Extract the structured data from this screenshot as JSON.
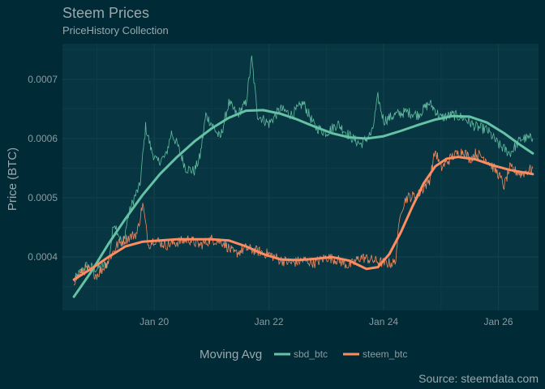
{
  "chart_data": {
    "type": "line",
    "title": "Steem Prices",
    "subtitle": "PriceHistory Collection",
    "ylabel": "Price (BTC)",
    "xlabel": "",
    "caption": "Source: steemdata.com",
    "legend_title": "Moving Avg",
    "legend_position": "bottom",
    "grid": true,
    "xlim_days": [
      18.4,
      26.7
    ],
    "ylim": [
      0.00031,
      0.00076
    ],
    "x_ticks": [
      {
        "day": 20,
        "label": "Jan 20"
      },
      {
        "day": 22,
        "label": "Jan 22"
      },
      {
        "day": 24,
        "label": "Jan 24"
      },
      {
        "day": 26,
        "label": "Jan 26"
      }
    ],
    "y_ticks": [
      {
        "value": 0.0004,
        "label": "0.0004"
      },
      {
        "value": 0.0005,
        "label": "0.0005"
      },
      {
        "value": 0.0006,
        "label": "0.0006"
      },
      {
        "value": 0.0007,
        "label": "0.0007"
      }
    ],
    "series": [
      {
        "name": "sbd_btc",
        "color": "#66c2a5",
        "raw": [
          [
            18.6,
            0.00036
          ],
          [
            18.8,
            0.000385
          ],
          [
            19.0,
            0.00038
          ],
          [
            19.2,
            0.00039
          ],
          [
            19.3,
            0.00046
          ],
          [
            19.45,
            0.00042
          ],
          [
            19.55,
            0.00047
          ],
          [
            19.65,
            0.0005
          ],
          [
            19.75,
            0.00052
          ],
          [
            19.85,
            0.00062
          ],
          [
            19.95,
            0.00058
          ],
          [
            20.05,
            0.00056
          ],
          [
            20.2,
            0.00057
          ],
          [
            20.3,
            0.00061
          ],
          [
            20.4,
            0.00059
          ],
          [
            20.55,
            0.00055
          ],
          [
            20.7,
            0.000545
          ],
          [
            20.8,
            0.00057
          ],
          [
            20.9,
            0.00064
          ],
          [
            21.0,
            0.000625
          ],
          [
            21.15,
            0.0006
          ],
          [
            21.3,
            0.00066
          ],
          [
            21.45,
            0.00064
          ],
          [
            21.6,
            0.00066
          ],
          [
            21.7,
            0.000735
          ],
          [
            21.8,
            0.00064
          ],
          [
            22.0,
            0.000625
          ],
          [
            22.2,
            0.00065
          ],
          [
            22.4,
            0.00064
          ],
          [
            22.6,
            0.00066
          ],
          [
            22.8,
            0.00062
          ],
          [
            23.0,
            0.00061
          ],
          [
            23.2,
            0.000625
          ],
          [
            23.4,
            0.000605
          ],
          [
            23.6,
            0.00059
          ],
          [
            23.8,
            0.00061
          ],
          [
            23.9,
            0.00067
          ],
          [
            24.0,
            0.00063
          ],
          [
            24.2,
            0.00064
          ],
          [
            24.4,
            0.000645
          ],
          [
            24.6,
            0.00064
          ],
          [
            24.8,
            0.00066
          ],
          [
            25.0,
            0.000635
          ],
          [
            25.2,
            0.00064
          ],
          [
            25.4,
            0.000635
          ],
          [
            25.6,
            0.00062
          ],
          [
            25.8,
            0.000615
          ],
          [
            26.0,
            0.00059
          ],
          [
            26.2,
            0.000575
          ],
          [
            26.4,
            0.0006
          ],
          [
            26.6,
            0.0006
          ]
        ],
        "smooth": [
          [
            18.6,
            0.000333
          ],
          [
            18.9,
            0.000375
          ],
          [
            19.2,
            0.000422
          ],
          [
            19.5,
            0.000465
          ],
          [
            19.8,
            0.000505
          ],
          [
            20.1,
            0.00054
          ],
          [
            20.4,
            0.000569
          ],
          [
            20.7,
            0.000595
          ],
          [
            21.0,
            0.000617
          ],
          [
            21.3,
            0.000635
          ],
          [
            21.6,
            0.000647
          ],
          [
            21.9,
            0.000648
          ],
          [
            22.2,
            0.000642
          ],
          [
            22.5,
            0.000632
          ],
          [
            22.8,
            0.00062
          ],
          [
            23.1,
            0.000609
          ],
          [
            23.4,
            0.000602
          ],
          [
            23.7,
            0.0006
          ],
          [
            24.0,
            0.000604
          ],
          [
            24.3,
            0.000613
          ],
          [
            24.6,
            0.000623
          ],
          [
            24.9,
            0.000632
          ],
          [
            25.2,
            0.000638
          ],
          [
            25.5,
            0.000637
          ],
          [
            25.8,
            0.000627
          ],
          [
            26.1,
            0.000609
          ],
          [
            26.4,
            0.000588
          ],
          [
            26.6,
            0.000575
          ]
        ]
      },
      {
        "name": "steem_btc",
        "color": "#fc8d62",
        "raw": [
          [
            18.6,
            0.00036
          ],
          [
            18.8,
            0.00038
          ],
          [
            19.0,
            0.00037
          ],
          [
            19.1,
            0.00038
          ],
          [
            19.2,
            0.000395
          ],
          [
            19.35,
            0.00042
          ],
          [
            19.5,
            0.00043
          ],
          [
            19.6,
            0.000435
          ],
          [
            19.7,
            0.00044
          ],
          [
            19.8,
            0.00049
          ],
          [
            19.9,
            0.00042
          ],
          [
            20.0,
            0.00043
          ],
          [
            20.2,
            0.00042
          ],
          [
            20.4,
            0.000425
          ],
          [
            20.6,
            0.00043
          ],
          [
            20.8,
            0.00042
          ],
          [
            21.0,
            0.00043
          ],
          [
            21.2,
            0.000425
          ],
          [
            21.4,
            0.000405
          ],
          [
            21.6,
            0.000415
          ],
          [
            21.8,
            0.00041
          ],
          [
            22.0,
            0.000405
          ],
          [
            22.2,
            0.000395
          ],
          [
            22.4,
            0.00039
          ],
          [
            22.6,
            0.000395
          ],
          [
            22.8,
            0.00039
          ],
          [
            23.0,
            0.0004
          ],
          [
            23.2,
            0.000395
          ],
          [
            23.4,
            0.000385
          ],
          [
            23.6,
            0.0004
          ],
          [
            23.8,
            0.000395
          ],
          [
            24.0,
            0.00039
          ],
          [
            24.2,
            0.00039
          ],
          [
            24.3,
            0.00048
          ],
          [
            24.4,
            0.0005
          ],
          [
            24.6,
            0.000505
          ],
          [
            24.8,
            0.00053
          ],
          [
            24.9,
            0.00058
          ],
          [
            25.0,
            0.00055
          ],
          [
            25.2,
            0.00057
          ],
          [
            25.4,
            0.00058
          ],
          [
            25.5,
            0.000565
          ],
          [
            25.6,
            0.000575
          ],
          [
            25.8,
            0.000565
          ],
          [
            26.0,
            0.00054
          ],
          [
            26.1,
            0.00052
          ],
          [
            26.2,
            0.00055
          ],
          [
            26.4,
            0.00054
          ],
          [
            26.6,
            0.00055
          ]
        ],
        "smooth": [
          [
            18.6,
            0.000362
          ],
          [
            18.9,
            0.00038
          ],
          [
            19.2,
            0.0004
          ],
          [
            19.5,
            0.000418
          ],
          [
            19.8,
            0.000426
          ],
          [
            20.1,
            0.000428
          ],
          [
            20.4,
            0.00043
          ],
          [
            20.7,
            0.00043
          ],
          [
            21.0,
            0.00043
          ],
          [
            21.3,
            0.000428
          ],
          [
            21.6,
            0.000418
          ],
          [
            21.9,
            0.000405
          ],
          [
            22.2,
            0.000396
          ],
          [
            22.5,
            0.000395
          ],
          [
            22.8,
            0.000397
          ],
          [
            23.1,
            0.0004
          ],
          [
            23.4,
            0.000394
          ],
          [
            23.7,
            0.00038
          ],
          [
            23.9,
            0.000383
          ],
          [
            24.1,
            0.000405
          ],
          [
            24.3,
            0.000442
          ],
          [
            24.5,
            0.000485
          ],
          [
            24.7,
            0.000525
          ],
          [
            24.9,
            0.000553
          ],
          [
            25.1,
            0.000566
          ],
          [
            25.3,
            0.000569
          ],
          [
            25.6,
            0.000565
          ],
          [
            25.9,
            0.000555
          ],
          [
            26.2,
            0.000547
          ],
          [
            26.6,
            0.00054
          ]
        ]
      }
    ]
  }
}
